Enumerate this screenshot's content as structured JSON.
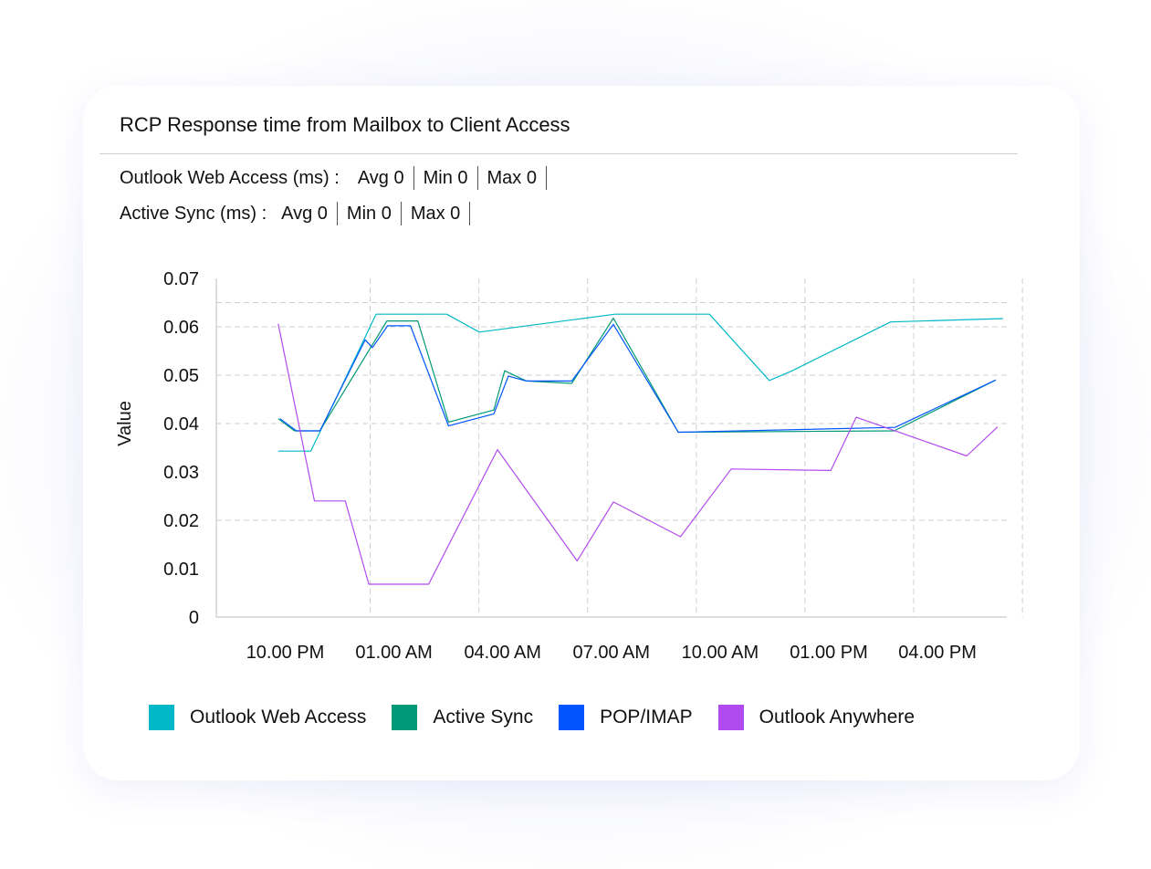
{
  "card": {
    "title": "RCP Response time from Mailbox to Client Access"
  },
  "stats": [
    {
      "label": "Outlook Web Access (ms) :",
      "avg": "Avg 0",
      "min": "Min 0",
      "max": "Max 0"
    },
    {
      "label": "Active Sync (ms) :",
      "avg": "Avg 0",
      "min": "Min 0",
      "max": "Max 0"
    }
  ],
  "chart_data": {
    "type": "line",
    "title": "RCP Response time from Mailbox to Client Access",
    "ylabel": "Value",
    "xlabel": "",
    "ylim": [
      0,
      0.07
    ],
    "y_ticks": [
      "0",
      "0.01",
      "0.02",
      "0.03",
      "0.04",
      "0.05",
      "0.06",
      "0.07"
    ],
    "x_ticks": [
      {
        "label": "10.00 PM",
        "t": 0
      },
      {
        "label": "01.00 AM",
        "t": 3
      },
      {
        "label": "04.00 AM",
        "t": 6
      },
      {
        "label": "07.00 AM",
        "t": 9
      },
      {
        "label": "10.00 AM",
        "t": 12
      },
      {
        "label": "01.00 PM",
        "t": 15
      },
      {
        "label": "04.00 PM",
        "t": 18
      }
    ],
    "grid": true,
    "series": [
      {
        "name": "Outlook Web Access",
        "color": "#00b8c8",
        "x": [
          -1.05,
          -0.15,
          1.65,
          2.6,
          3.6,
          4.5,
          8.25,
          9.05,
          10.85,
          12.5,
          13.1,
          15.85,
          18.95
        ],
        "y": [
          0.0343,
          0.0343,
          0.0626,
          0.0626,
          0.0626,
          0.0589,
          0.0626,
          0.0626,
          0.0626,
          0.0489,
          0.0508,
          0.061,
          0.0617
        ]
      },
      {
        "name": "Active Sync",
        "color": "#009977",
        "x": [
          -1.05,
          -0.6,
          0.1,
          1.2,
          1.95,
          2.8,
          3.65,
          4.9,
          5.2,
          5.8,
          7.05,
          8.2,
          9.99,
          15.95,
          18.75
        ],
        "y": [
          0.041,
          0.0385,
          0.0385,
          0.052,
          0.0612,
          0.0612,
          0.0403,
          0.0428,
          0.0509,
          0.0488,
          0.0483,
          0.0618,
          0.0382,
          0.0385,
          0.049
        ]
      },
      {
        "name": "POP/IMAP",
        "color": "#0055ff",
        "x": [
          -1.0,
          -0.55,
          0.1,
          1.35,
          1.55,
          1.97,
          2.6,
          3.65,
          4.9,
          5.3,
          5.8,
          7.05,
          8.2,
          9.99,
          15.97,
          18.75
        ],
        "y": [
          0.041,
          0.0385,
          0.0385,
          0.0573,
          0.0557,
          0.0602,
          0.0602,
          0.0395,
          0.042,
          0.0498,
          0.0488,
          0.0488,
          0.0605,
          0.0382,
          0.0392,
          0.049
        ]
      },
      {
        "name": "Outlook Anywhere",
        "color": "#b14bf0",
        "x": [
          -1.05,
          -0.05,
          0.8,
          1.45,
          3.1,
          5.0,
          7.2,
          8.2,
          10.05,
          11.45,
          14.2,
          14.9,
          17.95,
          18.8
        ],
        "y": [
          0.0606,
          0.024,
          0.024,
          0.0068,
          0.0068,
          0.0346,
          0.0116,
          0.0238,
          0.0166,
          0.0306,
          0.0303,
          0.0413,
          0.0333,
          0.0393
        ]
      }
    ]
  },
  "legend": {
    "items": [
      {
        "label": "Outlook Web Access",
        "color": "#00b8c8"
      },
      {
        "label": "Active Sync",
        "color": "#009977"
      },
      {
        "label": "POP/IMAP",
        "color": "#0055ff"
      },
      {
        "label": "Outlook Anywhere",
        "color": "#b14bf0"
      }
    ]
  }
}
